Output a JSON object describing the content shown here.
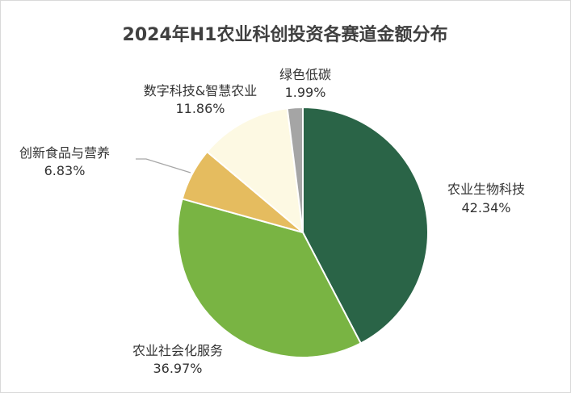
{
  "chart_data": {
    "type": "pie",
    "title": "2024年H1农业科创投资各赛道金额分布",
    "slices": [
      {
        "name": "农业生物科技",
        "value": 42.34,
        "label": "42.34%",
        "color": "#2a6447"
      },
      {
        "name": "农业社会化服务",
        "value": 36.97,
        "label": "36.97%",
        "color": "#79b443"
      },
      {
        "name": "创新食品与营养",
        "value": 6.83,
        "label": "6.83%",
        "color": "#e5bc5f"
      },
      {
        "name": "数字科技&智慧农业",
        "value": 11.86,
        "label": "11.86%",
        "color": "#fdf9e3"
      },
      {
        "name": "绿色低碳",
        "value": 1.99,
        "label": "1.99%",
        "color": "#a5a5a5"
      }
    ],
    "start_angle": "12 o'clock",
    "direction": "clockwise",
    "legend": "none",
    "data_labels": "category name and percentage"
  }
}
